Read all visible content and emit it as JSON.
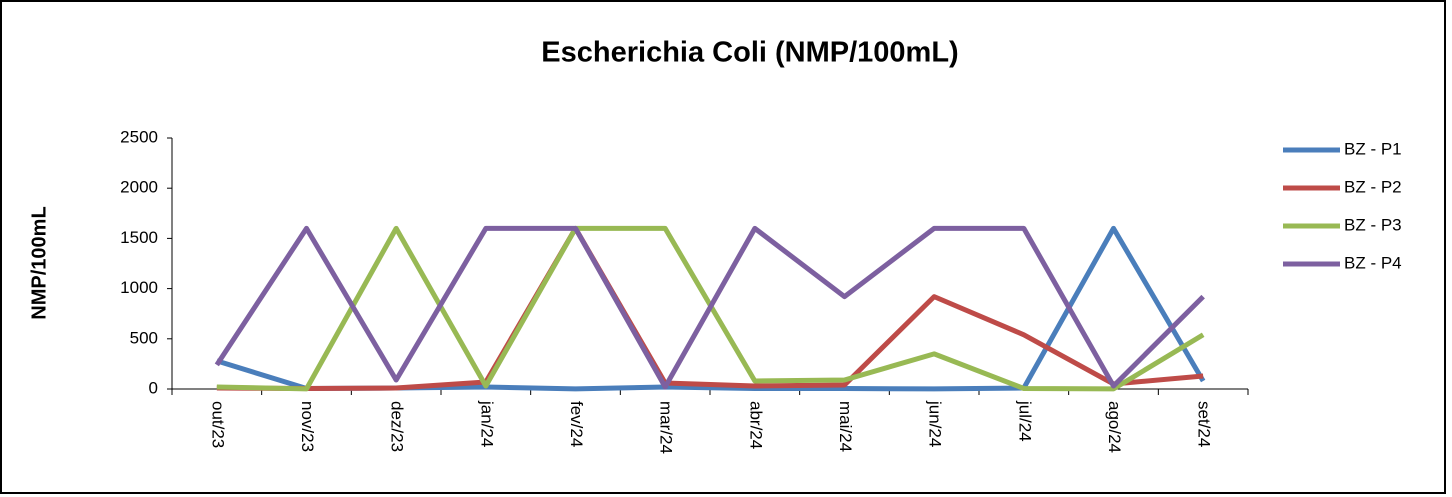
{
  "chart_data": {
    "type": "line",
    "title": "Escherichia Coli (NMP/100mL)",
    "y_label": "NMP/100mL",
    "categories": [
      "out/23",
      "nov/23",
      "dez/23",
      "jan/24",
      "fev/24",
      "mar/24",
      "abr/24",
      "mai/24",
      "jun/24",
      "jul/24",
      "ago/24",
      "set/24"
    ],
    "series": [
      {
        "name": "BZ - P1",
        "color": "#4a7ebb",
        "values": [
          280,
          5,
          10,
          20,
          1,
          20,
          5,
          5,
          1,
          10,
          1600,
          80
        ]
      },
      {
        "name": "BZ - P2",
        "color": "#be4b48",
        "values": [
          10,
          5,
          10,
          70,
          1600,
          60,
          30,
          40,
          920,
          540,
          50,
          130
        ]
      },
      {
        "name": "BZ - P3",
        "color": "#98b954",
        "values": [
          20,
          1,
          1600,
          30,
          1600,
          1600,
          80,
          90,
          350,
          5,
          1,
          540
        ]
      },
      {
        "name": "BZ - P4",
        "color": "#7d60a0",
        "values": [
          240,
          1600,
          90,
          1600,
          1600,
          20,
          1600,
          920,
          1600,
          1600,
          30,
          920
        ]
      }
    ],
    "ylim": [
      0,
      2500
    ],
    "yticks": [
      0,
      500,
      1000,
      1500,
      2000,
      2500
    ],
    "grid": false,
    "legend": "right"
  }
}
